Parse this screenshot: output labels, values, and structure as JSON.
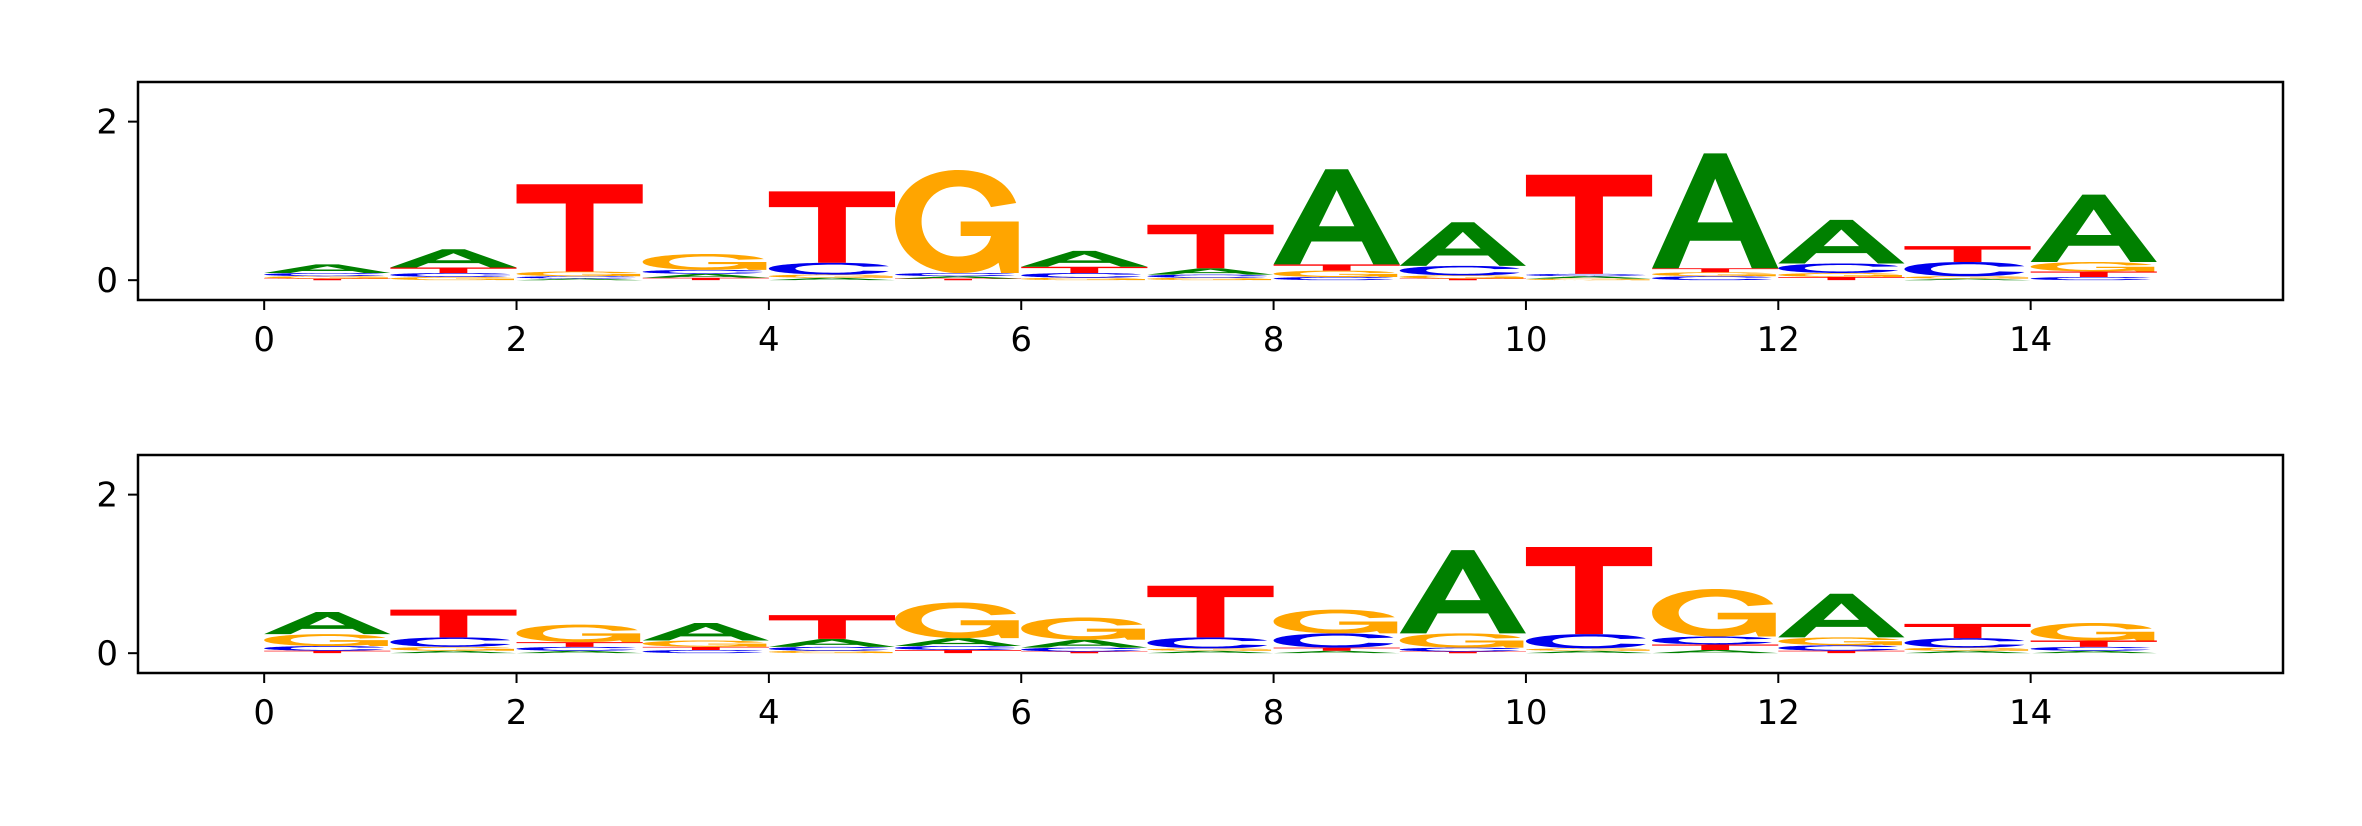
{
  "colors": {
    "A": "#008000",
    "C": "#0000ee",
    "G": "#ffa500",
    "T": "#ff0000"
  },
  "chart_data": [
    {
      "type": "sequence-logo",
      "title": "",
      "xlabel": "",
      "ylabel": "",
      "xlim": [
        -1,
        16
      ],
      "ylim": [
        -0.25,
        2.5
      ],
      "xticks": [
        0,
        2,
        4,
        6,
        8,
        10,
        12,
        14
      ],
      "yticks": [
        0,
        2
      ],
      "xtick_labels": [
        "0",
        "2",
        "4",
        "6",
        "8",
        "10",
        "12",
        "14"
      ],
      "ytick_labels": [
        "0",
        "2"
      ],
      "positions": [
        {
          "x": 0,
          "A": 0.11,
          "C": 0.04,
          "G": 0.03,
          "T": 0.02
        },
        {
          "x": 1,
          "A": 0.23,
          "C": 0.05,
          "G": 0.04,
          "T": 0.07
        },
        {
          "x": 2,
          "A": 0.02,
          "C": 0.03,
          "G": 0.06,
          "T": 1.1
        },
        {
          "x": 3,
          "A": 0.05,
          "C": 0.05,
          "G": 0.2,
          "T": 0.03
        },
        {
          "x": 4,
          "A": 0.03,
          "C": 0.15,
          "G": 0.04,
          "T": 0.9
        },
        {
          "x": 5,
          "A": 0.03,
          "C": 0.04,
          "G": 1.3,
          "T": 0.02
        },
        {
          "x": 6,
          "A": 0.2,
          "C": 0.06,
          "G": 0.03,
          "T": 0.08
        },
        {
          "x": 7,
          "A": 0.08,
          "C": 0.04,
          "G": 0.03,
          "T": 0.55
        },
        {
          "x": 8,
          "A": 1.2,
          "C": 0.04,
          "G": 0.08,
          "T": 0.08
        },
        {
          "x": 9,
          "A": 0.55,
          "C": 0.12,
          "G": 0.04,
          "T": 0.02
        },
        {
          "x": 10,
          "A": 0.03,
          "C": 0.03,
          "G": 0.02,
          "T": 1.25
        },
        {
          "x": 11,
          "A": 1.45,
          "C": 0.05,
          "G": 0.05,
          "T": 0.05
        },
        {
          "x": 12,
          "A": 0.55,
          "C": 0.12,
          "G": 0.05,
          "T": 0.04
        },
        {
          "x": 13,
          "A": 0.02,
          "C": 0.18,
          "G": 0.03,
          "T": 0.2
        },
        {
          "x": 14,
          "A": 0.85,
          "C": 0.04,
          "G": 0.12,
          "T": 0.07
        }
      ]
    },
    {
      "type": "sequence-logo",
      "title": "",
      "xlabel": "",
      "ylabel": "",
      "xlim": [
        -1,
        16
      ],
      "ylim": [
        -0.25,
        2.5
      ],
      "xticks": [
        0,
        2,
        4,
        6,
        8,
        10,
        12,
        14
      ],
      "yticks": [
        0,
        2
      ],
      "xtick_labels": [
        "0",
        "2",
        "4",
        "6",
        "8",
        "10",
        "12",
        "14"
      ],
      "ytick_labels": [
        "0",
        "2"
      ],
      "positions": [
        {
          "x": 0,
          "A": 0.28,
          "C": 0.06,
          "G": 0.15,
          "T": 0.03
        },
        {
          "x": 1,
          "A": 0.03,
          "C": 0.12,
          "G": 0.05,
          "T": 0.35
        },
        {
          "x": 2,
          "A": 0.03,
          "C": 0.05,
          "G": 0.22,
          "T": 0.06
        },
        {
          "x": 3,
          "A": 0.22,
          "C": 0.04,
          "G": 0.08,
          "T": 0.04
        },
        {
          "x": 4,
          "A": 0.1,
          "C": 0.05,
          "G": 0.03,
          "T": 0.3
        },
        {
          "x": 5,
          "A": 0.1,
          "C": 0.05,
          "G": 0.45,
          "T": 0.04
        },
        {
          "x": 6,
          "A": 0.1,
          "C": 0.05,
          "G": 0.28,
          "T": 0.02
        },
        {
          "x": 7,
          "A": 0.03,
          "C": 0.14,
          "G": 0.03,
          "T": 0.65
        },
        {
          "x": 8,
          "A": 0.03,
          "C": 0.18,
          "G": 0.3,
          "T": 0.04
        },
        {
          "x": 9,
          "A": 1.05,
          "C": 0.05,
          "G": 0.18,
          "T": 0.02
        },
        {
          "x": 10,
          "A": 0.03,
          "C": 0.18,
          "G": 0.03,
          "T": 1.1
        },
        {
          "x": 11,
          "A": 0.04,
          "C": 0.1,
          "G": 0.6,
          "T": 0.07
        },
        {
          "x": 12,
          "A": 0.55,
          "C": 0.07,
          "G": 0.1,
          "T": 0.03
        },
        {
          "x": 13,
          "A": 0.03,
          "C": 0.12,
          "G": 0.04,
          "T": 0.18
        },
        {
          "x": 14,
          "A": 0.03,
          "C": 0.05,
          "G": 0.22,
          "T": 0.08
        }
      ]
    }
  ]
}
